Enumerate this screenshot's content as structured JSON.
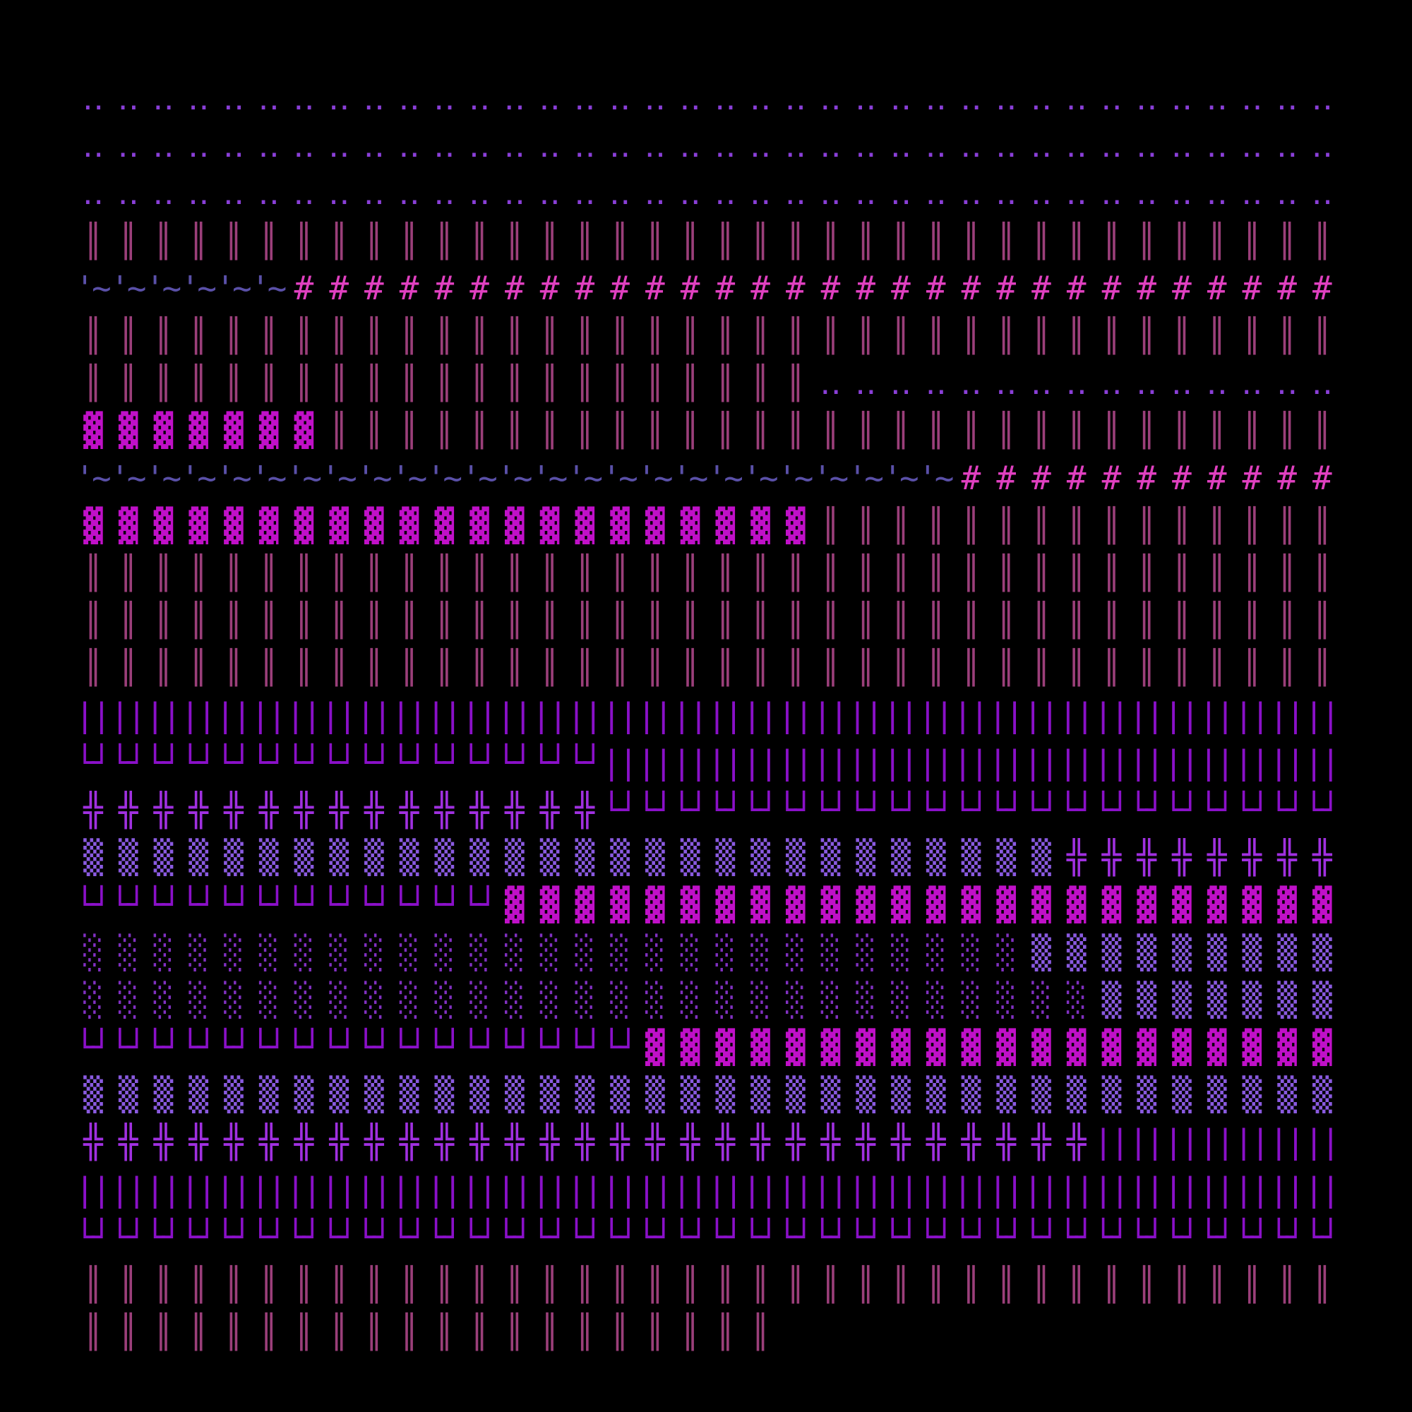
{
  "rows": [
    [
      {
        "glyph": "‥",
        "count": 36,
        "color": "#8a3fd8"
      }
    ],
    [
      {
        "glyph": "‥",
        "count": 36,
        "color": "#8a3fd8"
      }
    ],
    [
      {
        "glyph": "‥",
        "count": 36,
        "color": "#8a3fd8"
      }
    ],
    [
      {
        "glyph": "║",
        "count": 36,
        "color": "#9b3f7a"
      }
    ],
    [
      {
        "glyph": "'~",
        "count": 6,
        "color": "#5a50a8"
      },
      {
        "glyph": "#",
        "count": 30,
        "color": "#e040c0"
      }
    ],
    [
      {
        "glyph": "║",
        "count": 36,
        "color": "#9b3f7a"
      }
    ],
    [
      {
        "glyph": "║",
        "count": 21,
        "color": "#9b3f7a"
      },
      {
        "glyph": "‥",
        "count": 15,
        "color": "#8a3fd8"
      }
    ],
    [
      {
        "glyph": "▓",
        "count": 7,
        "color": "#c010c8"
      },
      {
        "glyph": "║",
        "count": 29,
        "color": "#9b3f7a"
      }
    ],
    [
      {
        "glyph": "'~",
        "count": 25,
        "color": "#5a50a8"
      },
      {
        "glyph": "#",
        "count": 11,
        "color": "#e040c0"
      }
    ],
    [
      {
        "glyph": "▓",
        "count": 21,
        "color": "#c010c8"
      },
      {
        "glyph": "║",
        "count": 15,
        "color": "#9b3f7a"
      }
    ],
    [
      {
        "glyph": "║",
        "count": 36,
        "color": "#9b3f7a"
      }
    ],
    [
      {
        "glyph": "║",
        "count": 36,
        "color": "#9b3f7a"
      }
    ],
    [
      {
        "glyph": "║",
        "count": 36,
        "color": "#9b3f7a"
      }
    ],
    [
      {
        "glyph": "||",
        "count": 36,
        "color": "#8a10c8"
      }
    ],
    [
      {
        "glyph": "└┘",
        "count": 15,
        "color": "#8a10c8"
      },
      {
        "glyph": "||",
        "count": 21,
        "color": "#8a10c8"
      }
    ],
    [
      {
        "glyph": "╬",
        "count": 15,
        "color": "#a030e0"
      },
      {
        "glyph": "└┘",
        "count": 21,
        "color": "#8a10c8"
      }
    ],
    [
      {
        "glyph": "▒",
        "count": 28,
        "color": "#8a5ae0"
      },
      {
        "glyph": "╬",
        "count": 8,
        "color": "#a030e0"
      }
    ],
    [
      {
        "glyph": "└┘",
        "count": 12,
        "color": "#8a10c8"
      },
      {
        "glyph": "▓",
        "count": 24,
        "color": "#c010c8"
      }
    ],
    [
      {
        "glyph": "░",
        "count": 27,
        "color": "#8030c0"
      },
      {
        "glyph": "▒",
        "count": 9,
        "color": "#8a5ae0"
      }
    ],
    [
      {
        "glyph": "░",
        "count": 29,
        "color": "#8030c0"
      },
      {
        "glyph": "▒",
        "count": 7,
        "color": "#8a5ae0"
      }
    ],
    [
      {
        "glyph": "└┘",
        "count": 16,
        "color": "#8a10c8"
      },
      {
        "glyph": "▓",
        "count": 20,
        "color": "#c010c8"
      }
    ],
    [
      {
        "glyph": "▒",
        "count": 36,
        "color": "#8a5ae0"
      }
    ],
    [
      {
        "glyph": "╬",
        "count": 29,
        "color": "#a030e0"
      },
      {
        "glyph": "||",
        "count": 7,
        "color": "#8a10c8"
      }
    ],
    [
      {
        "glyph": "||",
        "count": 36,
        "color": "#8a10c8"
      }
    ],
    [
      {
        "glyph": "└┘",
        "count": 36,
        "color": "#8a10c8"
      }
    ],
    [
      {
        "glyph": "║",
        "count": 36,
        "color": "#9b3f7a"
      }
    ],
    [
      {
        "glyph": "║",
        "count": 20,
        "color": "#9b3f7a"
      }
    ]
  ]
}
